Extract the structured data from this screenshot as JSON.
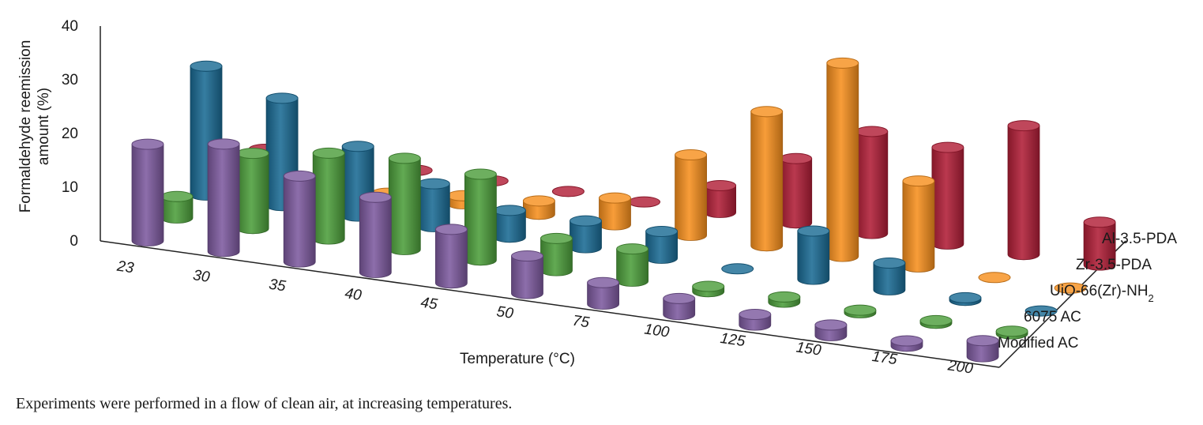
{
  "chart_data": {
    "type": "bar3d",
    "title": "",
    "ylabel": [
      "Formaldehyde reemission",
      "amount (%)"
    ],
    "xlabel": "Temperature (°C)",
    "ylim": [
      0,
      40
    ],
    "yticks": [
      "0",
      "10",
      "20",
      "30",
      "40"
    ],
    "categories": [
      "23",
      "30",
      "35",
      "40",
      "45",
      "50",
      "75",
      "100",
      "125",
      "150",
      "175",
      "200"
    ],
    "series": [
      {
        "name": "Modified AC",
        "label_main": "Modified AC",
        "color": "#7d5a9f",
        "values": [
          18,
          20,
          16,
          14,
          10,
          7,
          4,
          3,
          2,
          2,
          1,
          3
        ]
      },
      {
        "name": "6075 AC",
        "label_main": "6075 AC",
        "color": "#4d9e3c",
        "values": [
          4,
          14,
          16,
          17,
          16,
          6,
          6,
          1,
          1,
          0.5,
          0.5,
          0.5
        ]
      },
      {
        "name": "UiO-66(Zr)-NH2",
        "label_main": "UiO-66(Zr)-NH",
        "label_sub": "2",
        "color": "#1b6b94",
        "values": [
          24,
          20,
          13,
          8,
          5,
          5,
          5,
          0,
          9,
          5,
          0.5,
          0
        ]
      },
      {
        "name": "Zr-3.5-PDA",
        "label_main": "Zr-3.5-PDA",
        "color": "#f7901e",
        "values": [
          0,
          0,
          0,
          1.5,
          2.5,
          5,
          15,
          25,
          36,
          16,
          0,
          0
        ]
      },
      {
        "name": "Al-3.5-PDA",
        "label_main": "Al-3.5-PDA",
        "color": "#b11e37",
        "values": [
          0,
          0,
          0,
          0,
          0,
          0,
          5,
          12,
          19,
          18,
          24,
          8
        ]
      }
    ],
    "legend_position": "right-depth-axis"
  },
  "caption": "Experiments were performed in a flow of clean air, at increasing temperatures."
}
